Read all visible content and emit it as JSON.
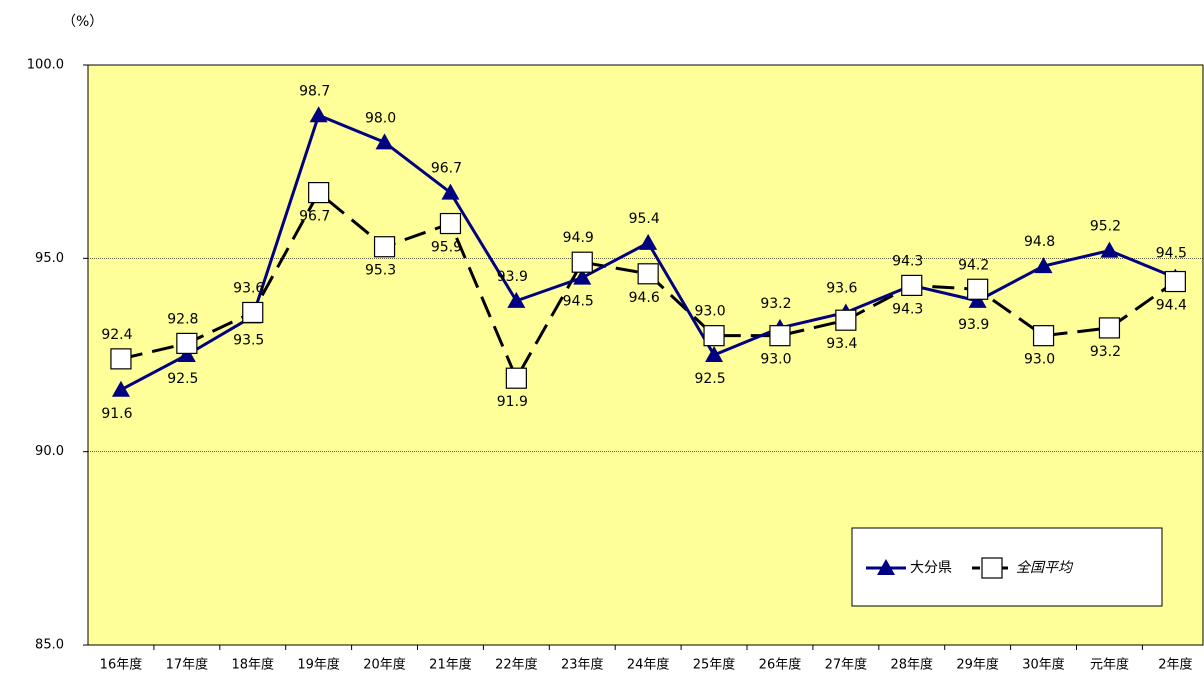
{
  "chart_data": {
    "type": "line",
    "y_label": "（%）",
    "categories": [
      "16年度",
      "17年度",
      "18年度",
      "19年度",
      "20年度",
      "21年度",
      "22年度",
      "23年度",
      "24年度",
      "25年度",
      "26年度",
      "27年度",
      "28年度",
      "29年度",
      "30年度",
      "元年度",
      "2年度"
    ],
    "series": [
      {
        "name": "大分県",
        "color": "#000080",
        "marker": "triangle",
        "values": [
          91.6,
          92.5,
          93.5,
          98.7,
          98.0,
          96.7,
          93.9,
          94.5,
          95.4,
          92.5,
          93.2,
          93.6,
          94.3,
          93.9,
          94.8,
          95.2,
          94.5
        ],
        "value_labels": [
          "91.6",
          "92.5",
          "93.5",
          "98.7",
          "98.0",
          "96.7",
          "93.9",
          "94.5",
          "95.4",
          "92.5",
          "93.2",
          "93.6",
          "94.3",
          "93.9",
          "94.8",
          "95.2",
          "94.5"
        ]
      },
      {
        "name": "全国平均",
        "color": "#000000",
        "marker": "square",
        "dashed": true,
        "values": [
          92.4,
          92.8,
          93.6,
          96.7,
          95.3,
          95.9,
          91.9,
          94.9,
          94.6,
          93.0,
          93.0,
          93.4,
          94.3,
          94.2,
          93.0,
          93.2,
          94.4
        ],
        "value_labels": [
          "92.4",
          "92.8",
          "93.6",
          "96.7",
          "95.3",
          "95.9",
          "91.9",
          "94.9",
          "94.6",
          "93.0",
          "93.0",
          "93.4",
          "94.3",
          "94.2",
          "93.0",
          "93.2",
          "94.4"
        ]
      }
    ],
    "ylim": [
      85,
      100
    ],
    "yticks": [
      {
        "value": 85,
        "label": "85.0"
      },
      {
        "value": 90,
        "label": "90.0"
      },
      {
        "value": 95,
        "label": "95.0"
      },
      {
        "value": 100,
        "label": "100.0"
      }
    ],
    "grid": true,
    "background": "#ffff99",
    "legend": "lower right"
  }
}
